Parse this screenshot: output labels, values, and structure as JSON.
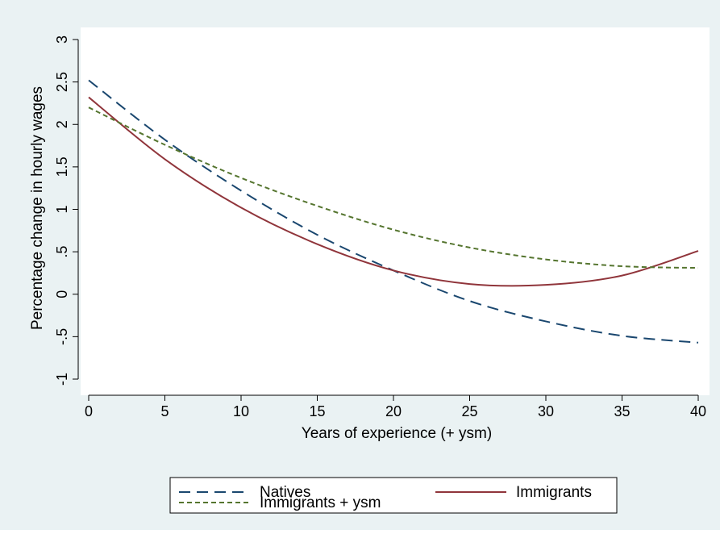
{
  "chart_data": {
    "type": "line",
    "title": "",
    "xlabel": "Years of experience (+ ysm)",
    "ylabel": "Percentage change in hourly wages",
    "xlim": [
      0,
      40
    ],
    "ylim": [
      -1,
      3
    ],
    "x_ticks": [
      0,
      5,
      10,
      15,
      20,
      25,
      30,
      35,
      40
    ],
    "x_tick_labels": [
      "0",
      "5",
      "10",
      "15",
      "20",
      "25",
      "30",
      "35",
      "40"
    ],
    "y_ticks": [
      -1,
      -0.5,
      0,
      0.5,
      1,
      1.5,
      2,
      2.5,
      3
    ],
    "y_tick_labels": [
      "-1",
      "-.5",
      "0",
      ".5",
      "1",
      "1.5",
      "2",
      "2.5",
      "3"
    ],
    "grid": false,
    "legend_position": "bottom",
    "x": [
      0,
      5,
      10,
      15,
      20,
      25,
      30,
      35,
      40
    ],
    "series": [
      {
        "name": "Natives",
        "values": [
          2.52,
          1.82,
          1.22,
          0.7,
          0.28,
          -0.08,
          -0.32,
          -0.49,
          -0.57
        ],
        "color": "#1a476f",
        "dash": "long-dash"
      },
      {
        "name": "Immigrants",
        "values": [
          2.32,
          1.59,
          1.02,
          0.59,
          0.28,
          0.12,
          0.11,
          0.22,
          0.51
        ],
        "color": "#90353b",
        "dash": "solid"
      },
      {
        "name": "Immigrants + ysm",
        "values": [
          2.2,
          1.76,
          1.37,
          1.04,
          0.76,
          0.55,
          0.41,
          0.33,
          0.31
        ],
        "color": "#55752f",
        "dash": "short-dash"
      }
    ],
    "colors": {
      "outer_background": "#eaf2f3",
      "plot_background": "#ffffff"
    }
  }
}
